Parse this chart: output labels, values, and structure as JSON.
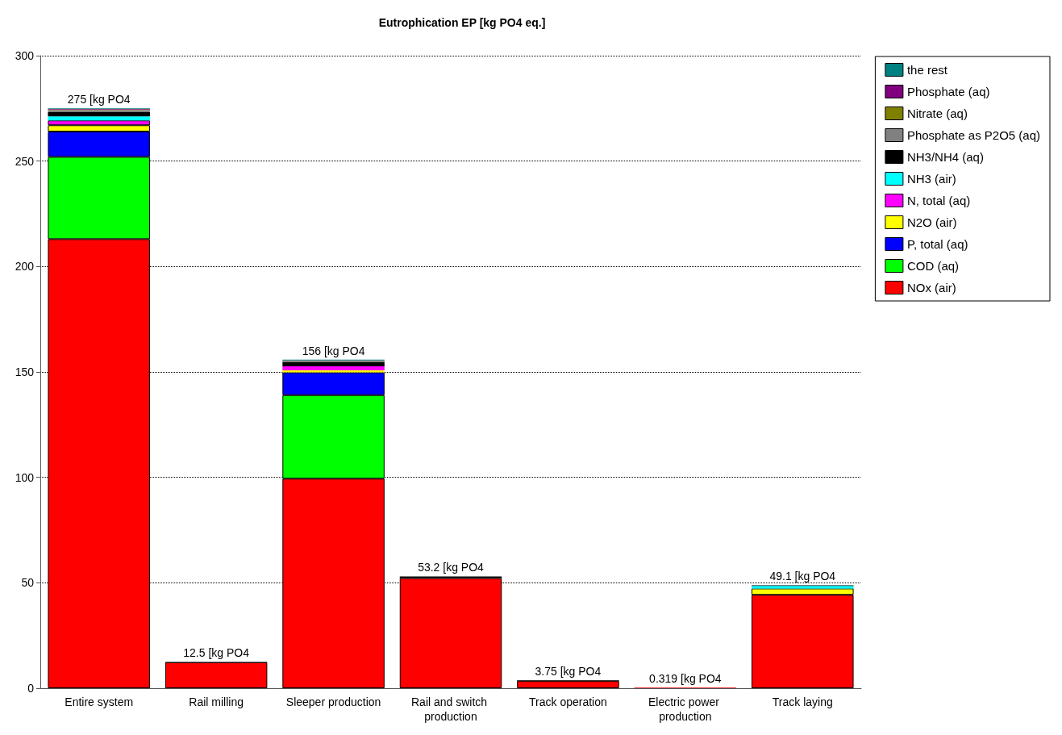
{
  "chart_data": {
    "type": "bar",
    "title": "Eutrophication EP [kg PO4 eq.]",
    "stacked": true,
    "categories": [
      "Entire system",
      "Rail milling",
      "Sleeper production",
      "Rail and switch production",
      "Track operation",
      "Electric power production",
      "Track laying"
    ],
    "series": [
      {
        "name": "NOx (air)",
        "color": "#ff0000",
        "values": [
          213,
          12.3,
          99.4,
          52.2,
          3.5,
          0.3,
          44.3
        ]
      },
      {
        "name": "COD (aq)",
        "color": "#00ff00",
        "values": [
          39,
          0,
          39.6,
          0,
          0,
          0,
          0
        ]
      },
      {
        "name": "P, total (aq)",
        "color": "#0000ff",
        "values": [
          12,
          0,
          10.8,
          0,
          0,
          0,
          0
        ]
      },
      {
        "name": "N2O (air)",
        "color": "#ffff00",
        "values": [
          3,
          0,
          1.0,
          0,
          0,
          0,
          3.0
        ]
      },
      {
        "name": "N, total (aq)",
        "color": "#ff00ff",
        "values": [
          2.3,
          0,
          1.9,
          0,
          0,
          0,
          null
        ]
      },
      {
        "name": "NH3 (air)",
        "color": "#00ffff",
        "values": [
          1.9,
          0,
          null,
          0,
          0,
          0,
          1.2
        ]
      },
      {
        "name": "NH3/NH4 (aq)",
        "color": "#000000",
        "values": [
          2.2,
          0.2,
          1.9,
          0.8,
          0.3,
          0.02,
          0.3
        ]
      },
      {
        "name": "Phosphate as P2O5 (aq)",
        "color": "#808080",
        "values": [
          0.8,
          0,
          0.5,
          0,
          0,
          0,
          0
        ]
      },
      {
        "name": "Nitrate (aq)",
        "color": "#808000",
        "values": [
          0.3,
          0,
          0.2,
          0,
          0,
          0,
          0
        ]
      },
      {
        "name": "Phosphate (aq)",
        "color": "#800080",
        "values": [
          0.2,
          0,
          0.2,
          0,
          0,
          0,
          0
        ]
      },
      {
        "name": "the rest",
        "color": "#008080",
        "values": [
          0.3,
          0,
          0.3,
          null,
          0,
          0,
          0.1
        ]
      }
    ],
    "totals": [
      "275 [kg PO4",
      "12.5 [kg PO4",
      "156 [kg PO4",
      "53.2 [kg PO4",
      "3.75 [kg PO4",
      "0.319 [kg PO4",
      "49.1 [kg PO4"
    ],
    "ylim": [
      0,
      300
    ],
    "yticks": [
      0,
      50,
      100,
      150,
      200,
      250,
      300
    ],
    "grid": "y",
    "legend": "top right"
  }
}
